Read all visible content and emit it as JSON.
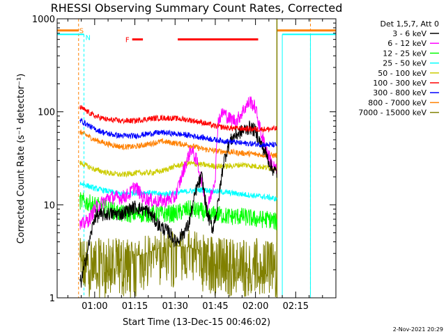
{
  "chart_data": {
    "type": "line",
    "title": "RHESSI Observing Summary Count Rates, Corrected",
    "xlabel": "Start Time (13-Dec-15 00:46:02)",
    "ylabel": "Corrected Count Rate (s⁻¹ detector⁻¹)",
    "y_scale": "log",
    "ylim": [
      1,
      1000
    ],
    "y_ticks": [
      1,
      10,
      100,
      1000
    ],
    "y_tick_labels": [
      "1",
      "10",
      "100",
      "1000"
    ],
    "xlim_minutes": [
      46,
      150
    ],
    "x_ticks_minutes": [
      60,
      75,
      90,
      105,
      120,
      135
    ],
    "x_tick_labels": [
      "01:00",
      "01:15",
      "01:30",
      "01:45",
      "02:00",
      "02:15"
    ],
    "legend_header": "Det 1,5,7, Att 0",
    "legend_placement": "right",
    "footer_date": "2-Nov-2021 20:29",
    "data_window_minutes": [
      54.5,
      128
    ],
    "series": [
      {
        "name": "3 - 6 keV",
        "color": "#000000",
        "x": [
          55,
          60,
          65,
          70,
          75,
          80,
          84,
          88,
          90,
          92,
          95,
          98,
          100,
          102,
          104,
          106,
          108,
          110,
          112,
          115,
          118,
          120,
          122,
          124,
          126,
          128
        ],
        "y": [
          1.5,
          7.5,
          8,
          8,
          9.5,
          8.5,
          6,
          5,
          4,
          4.5,
          6,
          15,
          20,
          8,
          5.5,
          10,
          28,
          45,
          55,
          62,
          68,
          62,
          45,
          35,
          25,
          22
        ]
      },
      {
        "name": "6 - 12 keV",
        "color": "#ff00ff",
        "x": [
          55,
          58,
          60,
          65,
          70,
          73,
          75,
          78,
          82,
          86,
          90,
          94,
          96,
          98,
          100,
          102,
          104,
          105,
          106,
          108,
          110,
          113,
          116,
          118,
          120,
          122,
          124,
          126,
          128
        ],
        "y": [
          6,
          7,
          9,
          12,
          12,
          13,
          16,
          12,
          11,
          11,
          12,
          28,
          40,
          30,
          18,
          9,
          15,
          20,
          80,
          100,
          85,
          80,
          110,
          130,
          110,
          60,
          40,
          28,
          23
        ]
      },
      {
        "name": "12 - 25 keV",
        "color": "#00ff00",
        "x": [
          55,
          60,
          65,
          70,
          75,
          80,
          85,
          90,
          95,
          100,
          103,
          105,
          110,
          115,
          120,
          125,
          128
        ],
        "y": [
          11,
          10,
          9,
          8,
          8,
          8,
          8,
          8,
          9,
          8.5,
          7.5,
          8,
          7.5,
          7.5,
          7,
          7,
          6.5
        ]
      },
      {
        "name": "25 - 50 keV",
        "color": "#00ffff",
        "x": [
          55,
          60,
          65,
          70,
          75,
          80,
          85,
          90,
          95,
          100,
          105,
          110,
          115,
          120,
          125,
          128
        ],
        "y": [
          17,
          15,
          14,
          13,
          13.5,
          13.5,
          13,
          13.5,
          14,
          14.5,
          14,
          13.5,
          13,
          12.5,
          12,
          11.5
        ]
      },
      {
        "name": "50 - 100 keV",
        "color": "#cccc00",
        "x": [
          55,
          60,
          65,
          70,
          75,
          80,
          85,
          90,
          95,
          100,
          105,
          110,
          115,
          120,
          125,
          128
        ],
        "y": [
          28,
          24,
          22,
          21,
          22,
          22,
          23,
          26,
          28,
          27,
          26,
          26,
          27,
          26,
          25,
          25
        ]
      },
      {
        "name": "100 - 300 keV",
        "color": "#ff0000",
        "x": [
          55,
          60,
          65,
          70,
          75,
          80,
          85,
          90,
          95,
          100,
          105,
          110,
          115,
          120,
          125,
          128
        ],
        "y": [
          110,
          90,
          82,
          80,
          80,
          84,
          86,
          85,
          82,
          77,
          70,
          67,
          66,
          65,
          65,
          66
        ]
      },
      {
        "name": "300 - 800 keV",
        "color": "#0000ff",
        "x": [
          55,
          60,
          65,
          70,
          75,
          80,
          85,
          90,
          95,
          100,
          105,
          110,
          115,
          120,
          125,
          128
        ],
        "y": [
          80,
          65,
          58,
          55,
          55,
          58,
          60,
          58,
          56,
          53,
          50,
          48,
          46,
          45,
          44,
          44
        ]
      },
      {
        "name": "800 - 7000 keV",
        "color": "#ff8000",
        "x": [
          55,
          60,
          65,
          70,
          75,
          80,
          85,
          90,
          95,
          100,
          105,
          110,
          115,
          120,
          125,
          128
        ],
        "y": [
          60,
          50,
          45,
          42,
          42,
          45,
          48,
          46,
          44,
          40,
          38,
          37,
          36,
          35,
          34,
          34
        ]
      },
      {
        "name": "7000 - 15000 keV",
        "color": "#808000",
        "x": [
          55,
          60,
          65,
          70,
          75,
          80,
          85,
          90,
          95,
          100,
          105,
          110,
          115,
          120,
          125,
          128
        ],
        "y": [
          2,
          2,
          2,
          2,
          2,
          2.2,
          2.5,
          2.6,
          2.5,
          2.3,
          2.1,
          2,
          2,
          2,
          2,
          2
        ]
      }
    ],
    "attenuator_marker": {
      "label": "F",
      "color": "#ff0000",
      "segments_minutes": [
        [
          74,
          78
        ],
        [
          91,
          121
        ]
      ],
      "y_level": 600
    },
    "saa_marker": {
      "label": "S",
      "color": "#ff8000",
      "y_level": 750,
      "segments_minutes": [
        [
          46,
          54
        ],
        [
          128,
          150
        ]
      ],
      "dashed_edges_minutes": [
        54,
        140.5
      ]
    },
    "night_marker": {
      "label": "N",
      "color": "#00ffff",
      "y_level": 680,
      "segments_minutes": [
        [
          46,
          56
        ],
        [
          130,
          150
        ]
      ],
      "edges_minutes": [
        46,
        56,
        130,
        140.5
      ]
    }
  }
}
